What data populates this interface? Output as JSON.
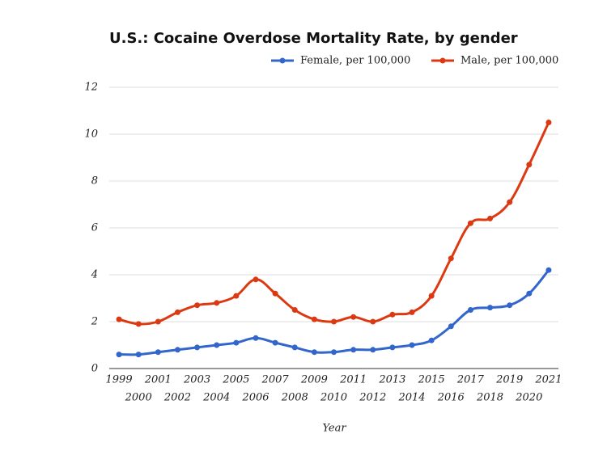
{
  "chart_data": {
    "type": "line",
    "title": "U.S.: Cocaine Overdose Mortality Rate, by gender",
    "x_label": "Year",
    "categories": [
      "1999",
      "2000",
      "2001",
      "2002",
      "2003",
      "2004",
      "2005",
      "2006",
      "2007",
      "2008",
      "2009",
      "2010",
      "2011",
      "2012",
      "2013",
      "2014",
      "2015",
      "2016",
      "2017",
      "2018",
      "2019",
      "2020",
      "2021"
    ],
    "series": [
      {
        "name": "Female, per 100,000",
        "color": "#3366cc",
        "values": [
          0.6,
          0.6,
          0.7,
          0.8,
          0.9,
          1.0,
          1.1,
          1.3,
          1.1,
          0.9,
          0.7,
          0.7,
          0.8,
          0.8,
          0.9,
          1.0,
          1.2,
          1.8,
          2.5,
          2.6,
          2.7,
          3.2,
          4.2
        ]
      },
      {
        "name": "Male, per 100,000",
        "color": "#dc3912",
        "values": [
          2.1,
          1.9,
          2.0,
          2.4,
          2.7,
          2.8,
          3.1,
          3.8,
          3.2,
          2.5,
          2.1,
          2.0,
          2.2,
          2.0,
          2.3,
          2.4,
          3.1,
          4.7,
          6.2,
          6.4,
          7.1,
          8.7,
          10.5
        ]
      }
    ],
    "ylim": [
      0,
      12
    ],
    "yticks": [
      0,
      2,
      4,
      6,
      8,
      10,
      12
    ],
    "grid": true
  }
}
